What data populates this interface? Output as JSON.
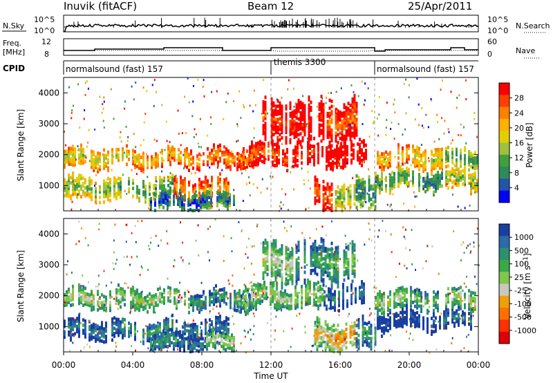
{
  "header": {
    "station": "Inuvik (fitACF)",
    "beam": "Beam 12",
    "date": "25/Apr/2011"
  },
  "nsky_panel": {
    "label": "N.Sky",
    "right_label": "N.Search",
    "ticks_left": [
      "10^5",
      "10^0"
    ],
    "ticks_right": [
      "10^5",
      "10^0"
    ]
  },
  "freq_panel": {
    "label_top": "Freq.",
    "label_bottom": "[MHz]",
    "right_label": "Nave",
    "ticks_left": [
      "12",
      "8"
    ],
    "ticks_right": [
      "60",
      "0"
    ]
  },
  "cpid": {
    "label": "CPID",
    "segments": [
      {
        "label": "normalsound (fast) 157",
        "start_hour": 0,
        "end_hour": 12
      },
      {
        "label": "themis 3300",
        "start_hour": 12,
        "end_hour": 18
      },
      {
        "label": "normalsound (fast) 157",
        "start_hour": 18,
        "end_hour": 24
      }
    ]
  },
  "x_axis": {
    "label": "Time UT",
    "ticks": [
      "00:00",
      "04:00",
      "08:00",
      "12:00",
      "16:00",
      "20:00",
      "00:00"
    ],
    "range_hours": [
      0,
      24
    ]
  },
  "chart_data": [
    {
      "type": "heatmap",
      "quantity": "Power",
      "ylabel": "Slant Range [km]",
      "yticks": [
        1000,
        2000,
        3000,
        4000
      ],
      "ylim": [
        180,
        4500
      ],
      "colorbar": {
        "label": "Power [dB]",
        "ticks": [
          "28",
          "24",
          "20",
          "16",
          "12",
          "8",
          "4"
        ],
        "colors": [
          "#ff0000",
          "#ff4000",
          "#ff8000",
          "#ffb000",
          "#e0d000",
          "#9fc03f",
          "#40a040",
          "#2e8a5a",
          "#2255aa",
          "#0000ff"
        ]
      },
      "bands": [
        {
          "start": 0.0,
          "end": 11.0,
          "center_km": 1900,
          "width_km": 300,
          "levels": [
            5,
            4,
            3
          ]
        },
        {
          "start": 0.0,
          "end": 9.5,
          "center_km": 900,
          "width_km": 350,
          "levels": [
            6,
            7,
            3
          ]
        },
        {
          "start": 5.0,
          "end": 9.8,
          "center_km": 500,
          "width_km": 300,
          "levels": [
            9,
            9,
            8
          ]
        },
        {
          "start": 18.0,
          "end": 24.0,
          "center_km": 1200,
          "width_km": 300,
          "levels": [
            7,
            8,
            6
          ]
        },
        {
          "start": 18.0,
          "end": 24.0,
          "center_km": 1900,
          "width_km": 350,
          "levels": [
            4,
            5,
            7
          ]
        },
        {
          "start": 10.0,
          "end": 17.5,
          "center_km": 2000,
          "width_km": 400,
          "levels": [
            2,
            1,
            0
          ]
        },
        {
          "start": 11.5,
          "end": 17.0,
          "center_km": 3100,
          "width_km": 700,
          "levels": [
            1,
            0,
            2
          ]
        },
        {
          "start": 14.5,
          "end": 18.0,
          "center_km": 700,
          "width_km": 500,
          "levels": [
            2,
            6,
            8
          ]
        }
      ]
    },
    {
      "type": "heatmap",
      "quantity": "Velocity",
      "ylabel": "Slant Range [km]",
      "yticks": [
        1000,
        2000,
        3000,
        4000
      ],
      "ylim": [
        180,
        4500
      ],
      "colorbar": {
        "label": "Velocity [m s^-1]",
        "ticks": [
          "1000",
          "500",
          "100",
          "25",
          "-25",
          "-100",
          "-500",
          "-1000"
        ],
        "colors": [
          "#1a3fa0",
          "#2d6aa8",
          "#2e8f6e",
          "#3aa84a",
          "#7fc84a",
          "#c8c8c0",
          "#f0a000",
          "#ff7000",
          "#ff3000",
          "#e00000"
        ]
      },
      "bands": [
        {
          "start": 0.0,
          "end": 11.0,
          "center_km": 1900,
          "width_km": 300,
          "levels": [
            5,
            5,
            3
          ]
        },
        {
          "start": 0.0,
          "end": 9.5,
          "center_km": 900,
          "width_km": 350,
          "levels": [
            2,
            3,
            2
          ]
        },
        {
          "start": 5.0,
          "end": 9.8,
          "center_km": 500,
          "width_km": 300,
          "levels": [
            3,
            2,
            5
          ]
        },
        {
          "start": 18.0,
          "end": 24.0,
          "center_km": 1200,
          "width_km": 300,
          "levels": [
            0,
            1,
            2
          ]
        },
        {
          "start": 18.0,
          "end": 24.0,
          "center_km": 1900,
          "width_km": 350,
          "levels": [
            5,
            4,
            5
          ]
        },
        {
          "start": 10.0,
          "end": 17.5,
          "center_km": 2000,
          "width_km": 400,
          "levels": [
            5,
            5,
            2
          ]
        },
        {
          "start": 11.5,
          "end": 17.0,
          "center_km": 3100,
          "width_km": 700,
          "levels": [
            5,
            3,
            4
          ]
        },
        {
          "start": 14.5,
          "end": 18.0,
          "center_km": 700,
          "width_km": 500,
          "levels": [
            6,
            7,
            3
          ]
        }
      ]
    }
  ]
}
